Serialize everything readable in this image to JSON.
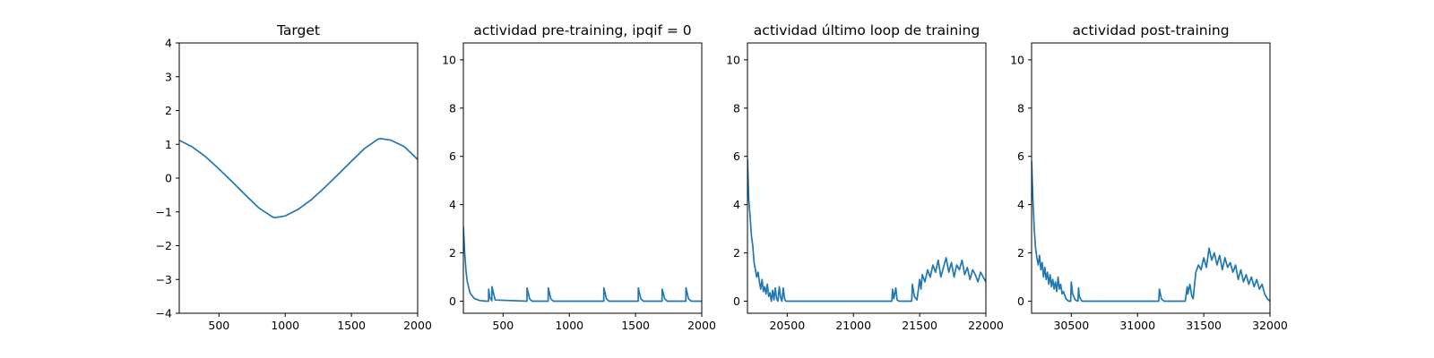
{
  "figure": {
    "colors": {
      "line": "#1f77b4",
      "axes": "#000000",
      "background": "#ffffff"
    }
  },
  "chart_data": [
    {
      "type": "line",
      "title": "Target",
      "xlabel": "",
      "ylabel": "",
      "xlim": [
        200,
        2000
      ],
      "ylim": [
        -4,
        4
      ],
      "xticks": [
        500,
        1000,
        1500,
        2000
      ],
      "yticks": [
        -4,
        -3,
        -2,
        -1,
        0,
        1,
        2,
        3,
        4
      ],
      "grid": false,
      "series": [
        {
          "x": [
            200,
            300,
            400,
            500,
            600,
            700,
            800,
            900,
            920,
            1000,
            1100,
            1200,
            1300,
            1400,
            1500,
            1600,
            1700,
            1720,
            1800,
            1900,
            2000
          ],
          "y": [
            1.12,
            0.92,
            0.63,
            0.27,
            -0.11,
            -0.5,
            -0.88,
            -1.14,
            -1.17,
            -1.12,
            -0.92,
            -0.63,
            -0.27,
            0.11,
            0.5,
            0.88,
            1.15,
            1.17,
            1.12,
            0.93,
            0.55
          ]
        }
      ]
    },
    {
      "type": "line",
      "title": "actividad pre-training, ipqif = 0",
      "xlabel": "",
      "ylabel": "",
      "xlim": [
        200,
        2000
      ],
      "ylim": [
        -0.5,
        10.7
      ],
      "xticks": [
        500,
        1000,
        1500,
        2000
      ],
      "yticks": [
        0,
        2,
        4,
        6,
        8,
        10
      ],
      "grid": false,
      "series": [
        {
          "x": [
            200,
            210,
            220,
            230,
            250,
            280,
            320,
            370,
            390,
            391,
            400,
            415,
            416,
            440,
            680,
            681,
            700,
            720,
            840,
            841,
            860,
            880,
            1260,
            1261,
            1280,
            1300,
            1520,
            1521,
            1540,
            1560,
            1700,
            1701,
            1720,
            1740,
            1880,
            1881,
            1900,
            1920,
            2000
          ],
          "y": [
            3.1,
            2.0,
            1.25,
            0.8,
            0.35,
            0.12,
            0.03,
            0.0,
            0.0,
            0.5,
            0.15,
            0.02,
            0.6,
            0.05,
            0.0,
            0.55,
            0.1,
            0.0,
            0.0,
            0.55,
            0.1,
            0.0,
            0.0,
            0.55,
            0.1,
            0.0,
            0.0,
            0.55,
            0.1,
            0.0,
            0.0,
            0.5,
            0.1,
            0.0,
            0.0,
            0.55,
            0.1,
            0.0,
            0.0
          ]
        }
      ]
    },
    {
      "type": "line",
      "title": "actividad último loop de training",
      "xlabel": "",
      "ylabel": "",
      "xlim": [
        20200,
        22000
      ],
      "ylim": [
        -0.5,
        10.7
      ],
      "xticks": [
        20500,
        21000,
        21500,
        22000
      ],
      "yticks": [
        0,
        2,
        4,
        6,
        8,
        10
      ],
      "grid": false,
      "series": [
        {
          "x": [
            20200,
            20210,
            20220,
            20230,
            20240,
            20250,
            20260,
            20270,
            20280,
            20290,
            20300,
            20310,
            20320,
            20330,
            20340,
            20350,
            20360,
            20370,
            20380,
            20390,
            20400,
            20410,
            20420,
            20430,
            20440,
            20450,
            20460,
            20470,
            20480,
            20490,
            20500,
            20510,
            21290,
            21295,
            21305,
            21320,
            21330,
            21345,
            21400,
            21440,
            21445,
            21460,
            21480,
            21500,
            21510,
            21520,
            21540,
            21560,
            21580,
            21600,
            21620,
            21640,
            21660,
            21680,
            21700,
            21720,
            21740,
            21760,
            21780,
            21800,
            21820,
            21840,
            21860,
            21880,
            21900,
            21920,
            21940,
            21960,
            21980,
            22000
          ],
          "y": [
            5.9,
            4.2,
            3.5,
            2.7,
            2.3,
            1.6,
            1.3,
            1.0,
            1.2,
            0.8,
            0.5,
            0.9,
            0.4,
            0.6,
            0.3,
            0.7,
            0.2,
            0.35,
            0.0,
            0.45,
            0.05,
            0.55,
            0.1,
            0.0,
            0.6,
            0.15,
            0.0,
            0.55,
            0.1,
            0.0,
            0.0,
            0.0,
            0.0,
            0.5,
            0.1,
            0.55,
            0.05,
            0.0,
            0.0,
            0.0,
            0.7,
            0.2,
            0.05,
            0.9,
            0.5,
            1.1,
            0.8,
            1.3,
            1.0,
            1.5,
            1.2,
            1.7,
            1.0,
            1.4,
            1.8,
            1.2,
            1.6,
            1.0,
            1.5,
            1.3,
            1.7,
            1.1,
            1.4,
            0.9,
            1.3,
            1.1,
            0.8,
            1.2,
            1.0,
            0.8
          ]
        }
      ]
    },
    {
      "type": "line",
      "title": "actividad post-training",
      "xlabel": "",
      "ylabel": "",
      "xlim": [
        30200,
        32000
      ],
      "ylim": [
        -0.5,
        10.7
      ],
      "xticks": [
        30500,
        31000,
        31500,
        32000
      ],
      "yticks": [
        0,
        2,
        4,
        6,
        8,
        10
      ],
      "grid": false,
      "series": [
        {
          "x": [
            30200,
            30210,
            30220,
            30230,
            30240,
            30250,
            30260,
            30270,
            30280,
            30290,
            30300,
            30310,
            30320,
            30330,
            30340,
            30350,
            30360,
            30370,
            30380,
            30390,
            30400,
            30410,
            30420,
            30430,
            30440,
            30460,
            30480,
            30495,
            30500,
            30510,
            30530,
            30550,
            30555,
            30560,
            30580,
            30600,
            31160,
            31165,
            31180,
            31200,
            31360,
            31375,
            31380,
            31395,
            31410,
            31420,
            31440,
            31460,
            31480,
            31500,
            31520,
            31540,
            31560,
            31580,
            31600,
            31620,
            31640,
            31660,
            31680,
            31700,
            31720,
            31740,
            31760,
            31780,
            31800,
            31820,
            31840,
            31860,
            31880,
            31900,
            31920,
            31940,
            31960,
            31980,
            32000
          ],
          "y": [
            5.8,
            4.2,
            3.0,
            2.2,
            1.8,
            1.5,
            1.9,
            1.3,
            1.6,
            1.0,
            1.4,
            0.9,
            1.2,
            0.7,
            1.1,
            0.6,
            0.9,
            0.5,
            0.8,
            0.4,
            1.0,
            0.5,
            0.7,
            0.3,
            0.4,
            0.1,
            0.0,
            0.0,
            0.8,
            0.3,
            0.05,
            0.0,
            0.55,
            0.2,
            0.0,
            0.0,
            0.0,
            0.5,
            0.1,
            0.0,
            0.0,
            0.6,
            0.3,
            0.7,
            0.2,
            0.1,
            1.2,
            1.5,
            1.3,
            1.8,
            1.4,
            2.2,
            1.7,
            2.0,
            1.5,
            1.9,
            1.3,
            1.8,
            1.4,
            1.6,
            1.2,
            1.5,
            0.9,
            1.3,
            0.8,
            1.1,
            0.7,
            1.0,
            0.6,
            0.9,
            0.5,
            0.7,
            0.3,
            0.1,
            0.0
          ]
        }
      ]
    }
  ]
}
